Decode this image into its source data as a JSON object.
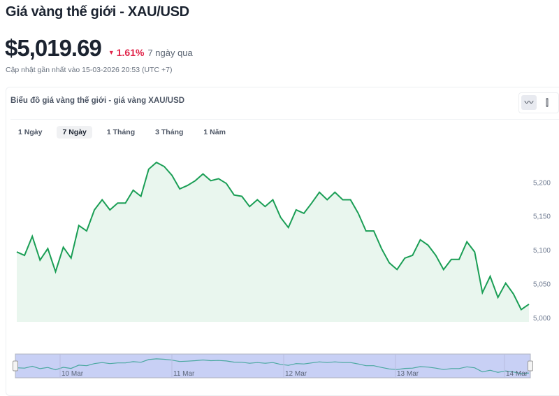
{
  "header": {
    "title": "Giá vàng thế giới - XAU/USD",
    "price": "$5,019.69",
    "change": "1.61%",
    "change_direction": "down",
    "period": "7 ngày qua",
    "updated": "Cập nhật gần nhất vào 15-03-2026 20:53 (UTC +7)"
  },
  "card": {
    "title": "Biểu đồ giá vàng thế giới - giá vàng XAU/USD",
    "chart_types": [
      {
        "icon": "line-chart-icon",
        "active": true
      },
      {
        "icon": "candlestick-icon",
        "active": false
      }
    ]
  },
  "tabs": [
    {
      "label": "1 Ngày"
    },
    {
      "label": "7 Ngày",
      "active": true
    },
    {
      "label": "1 Tháng"
    },
    {
      "label": "3 Tháng"
    },
    {
      "label": "1 Năm"
    }
  ],
  "colors": {
    "line": "#1a9e55",
    "fill": "#e9f6ee",
    "down": "#e0254a",
    "navigator": "#c8d0f5",
    "navigator_line": "#4aa8a0"
  },
  "chart_data": {
    "type": "area",
    "title": "",
    "xlabel": "",
    "ylabel": "",
    "ylim": [
      4994,
      5257
    ],
    "yticks": [
      "5,000",
      "5,050",
      "5,100",
      "5,150",
      "5,200"
    ],
    "ytick_values": [
      5000,
      5050,
      5100,
      5150,
      5200
    ],
    "grid": false,
    "navigator_labels": [
      "10 Mar",
      "11 Mar",
      "12 Mar",
      "13 Mar",
      "14 Mar"
    ],
    "values": [
      5097,
      5092,
      5120,
      5085,
      5102,
      5068,
      5104,
      5088,
      5136,
      5128,
      5159,
      5174,
      5159,
      5169,
      5169,
      5188,
      5179,
      5219,
      5229,
      5223,
      5210,
      5190,
      5195,
      5202,
      5212,
      5202,
      5205,
      5198,
      5181,
      5179,
      5164,
      5174,
      5164,
      5174,
      5148,
      5133,
      5159,
      5154,
      5169,
      5185,
      5174,
      5185,
      5174,
      5174,
      5154,
      5128,
      5128,
      5102,
      5081,
      5071,
      5088,
      5092,
      5115,
      5107,
      5092,
      5071,
      5086,
      5086,
      5112,
      5097,
      5037,
      5061,
      5030,
      5051,
      5035,
      5012,
      5020
    ]
  }
}
